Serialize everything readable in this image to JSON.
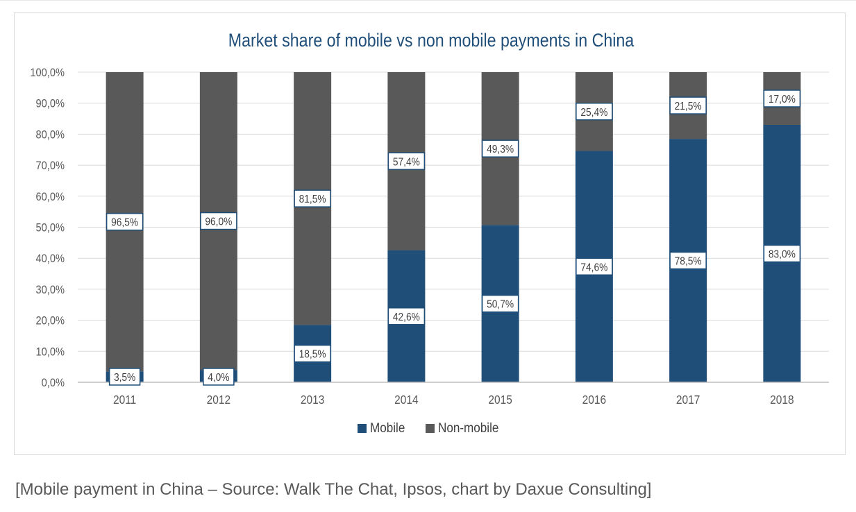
{
  "caption": "[Mobile payment in China – Source: Walk The Chat, Ipsos, chart by Daxue Consulting]",
  "colors": {
    "mobile": "#1f4e79",
    "non_mobile": "#595959",
    "title": "#1f4e79",
    "grid": "#d9d9d9",
    "label_border": "#1f4e79"
  },
  "chart_data": {
    "type": "bar",
    "stacked": true,
    "title": "Market share of mobile vs non mobile payments in China",
    "xlabel": "",
    "ylabel": "",
    "ylim": [
      0,
      100
    ],
    "y_ticks": [
      "0,0%",
      "10,0%",
      "20,0%",
      "30,0%",
      "40,0%",
      "50,0%",
      "60,0%",
      "70,0%",
      "80,0%",
      "90,0%",
      "100,0%"
    ],
    "grid": true,
    "legend_position": "bottom",
    "categories": [
      "2011",
      "2012",
      "2013",
      "2014",
      "2015",
      "2016",
      "2017",
      "2018"
    ],
    "series": [
      {
        "name": "Mobile",
        "values": [
          3.5,
          4.0,
          18.5,
          42.6,
          50.7,
          74.6,
          78.5,
          83.0
        ],
        "labels": [
          "3,5%",
          "4,0%",
          "18,5%",
          "42,6%",
          "50,7%",
          "74,6%",
          "78,5%",
          "83,0%"
        ]
      },
      {
        "name": "Non-mobile",
        "values": [
          96.5,
          96.0,
          81.5,
          57.4,
          49.3,
          25.4,
          21.5,
          17.0
        ],
        "labels": [
          "96,5%",
          "96,0%",
          "81,5%",
          "57,4%",
          "49,3%",
          "25,4%",
          "21,5%",
          "17,0%"
        ]
      }
    ]
  }
}
